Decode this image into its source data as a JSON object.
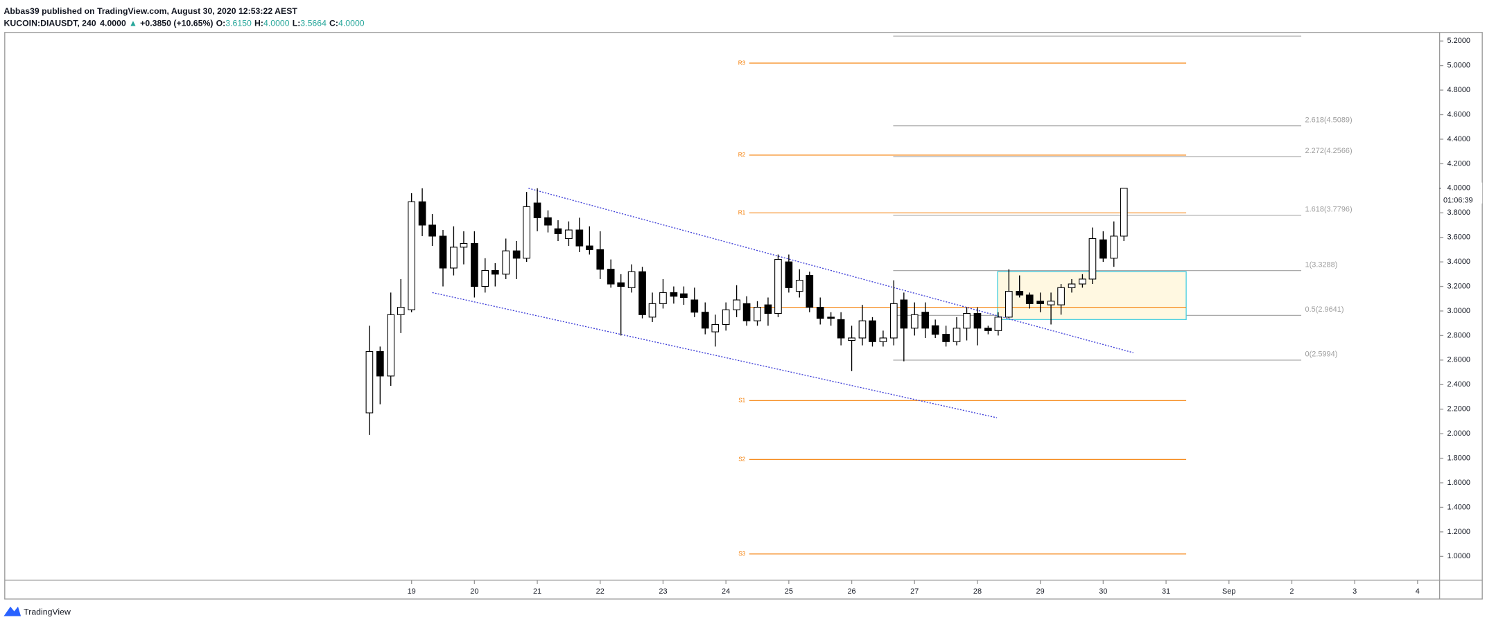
{
  "header": {
    "author_line": "Abbas39 published on TradingView.com, August 30, 2020 12:53:22 AEST",
    "symbol": "KUCOIN:DIAUSDT, 240",
    "last": "4.0000",
    "change": "+0.3850 (+10.65%)",
    "open_label": "O:",
    "open": "3.6150",
    "high_label": "H:",
    "high": "4.0000",
    "low_label": "L:",
    "low": "3.5664",
    "close_label": "C:",
    "close": "4.0000"
  },
  "chart_data": {
    "type": "candlestick",
    "x": [
      18.33,
      18.5,
      18.67,
      18.83,
      19,
      19.17,
      19.33,
      19.5,
      19.67,
      19.83,
      20,
      20.17,
      20.33,
      20.5,
      20.67,
      20.83,
      21,
      21.17,
      21.33,
      21.5,
      21.67,
      21.83,
      22,
      22.17,
      22.33,
      22.5,
      22.67,
      22.83,
      23,
      23.17,
      23.33,
      23.5,
      23.67,
      23.83,
      24,
      24.17,
      24.33,
      24.5,
      24.67,
      24.83,
      25,
      25.17,
      25.33,
      25.5,
      25.67,
      25.83,
      26,
      26.17,
      26.33,
      26.5,
      26.67,
      26.83,
      27,
      27.17,
      27.33,
      27.5,
      27.67,
      27.83,
      28,
      28.17,
      28.33,
      28.5,
      28.67,
      28.83,
      29,
      29.17,
      29.33,
      29.5,
      29.67,
      29.83,
      30,
      30.17,
      30.33
    ],
    "open": [
      2.17,
      2.67,
      2.47,
      2.97,
      3.01,
      3.89,
      3.7,
      3.61,
      3.35,
      3.52,
      3.55,
      3.2,
      3.33,
      3.3,
      3.49,
      3.43,
      3.88,
      3.76,
      3.67,
      3.59,
      3.66,
      3.53,
      3.5,
      3.34,
      3.23,
      3.19,
      3.32,
      2.95,
      3.06,
      3.15,
      3.14,
      3.09,
      2.99,
      2.83,
      2.89,
      3.01,
      3.06,
      2.92,
      3.05,
      2.98,
      3.4,
      3.16,
      3.29,
      3.03,
      2.95,
      2.93,
      2.76,
      2.78,
      2.92,
      2.75,
      2.78,
      3.09,
      2.86,
      2.99,
      2.88,
      2.81,
      2.75,
      2.86,
      2.98,
      2.86,
      2.84,
      2.95,
      3.16,
      3.13,
      3.08,
      3.05,
      3.05,
      3.19,
      3.22,
      3.26,
      3.58,
      3.43,
      3.61
    ],
    "high": [
      2.88,
      2.71,
      3.15,
      3.26,
      3.96,
      4.0,
      3.79,
      3.66,
      3.69,
      3.65,
      3.65,
      3.43,
      3.39,
      3.59,
      3.57,
      3.97,
      4.0,
      3.82,
      3.74,
      3.73,
      3.76,
      3.69,
      3.65,
      3.42,
      3.3,
      3.38,
      3.36,
      3.15,
      3.26,
      3.2,
      3.2,
      3.19,
      3.07,
      2.97,
      3.07,
      3.21,
      3.12,
      3.08,
      3.11,
      3.46,
      3.46,
      3.34,
      3.32,
      3.11,
      2.99,
      2.99,
      2.88,
      3.05,
      2.95,
      2.84,
      3.25,
      3.15,
      3.07,
      3.07,
      2.93,
      2.88,
      2.95,
      3.03,
      3.03,
      2.88,
      2.99,
      3.34,
      3.29,
      3.15,
      3.15,
      3.15,
      3.22,
      3.26,
      3.3,
      3.68,
      3.65,
      3.73,
      4.0
    ],
    "low": [
      1.99,
      2.24,
      2.39,
      2.82,
      2.99,
      3.61,
      3.53,
      3.2,
      3.29,
      3.38,
      3.11,
      3.15,
      3.2,
      3.26,
      3.26,
      3.4,
      3.65,
      3.64,
      3.57,
      3.53,
      3.48,
      3.46,
      3.26,
      3.19,
      2.8,
      3.15,
      2.94,
      2.91,
      3.02,
      3.06,
      3.05,
      2.95,
      2.81,
      2.71,
      2.84,
      2.95,
      2.88,
      2.88,
      2.88,
      2.95,
      3.15,
      3.11,
      2.99,
      2.89,
      2.88,
      2.72,
      2.51,
      2.72,
      2.71,
      2.71,
      2.72,
      2.59,
      2.8,
      2.78,
      2.78,
      2.71,
      2.72,
      2.76,
      2.72,
      2.81,
      2.8,
      2.94,
      3.11,
      3.02,
      2.99,
      2.89,
      2.97,
      3.15,
      3.19,
      3.22,
      3.4,
      3.36,
      3.57
    ],
    "close": [
      2.67,
      2.47,
      2.97,
      3.03,
      3.89,
      3.7,
      3.61,
      3.35,
      3.52,
      3.55,
      3.2,
      3.33,
      3.3,
      3.49,
      3.43,
      3.85,
      3.76,
      3.7,
      3.63,
      3.66,
      3.53,
      3.5,
      3.34,
      3.22,
      3.2,
      3.32,
      2.97,
      3.06,
      3.15,
      3.12,
      3.11,
      2.99,
      2.86,
      2.89,
      3.01,
      3.09,
      2.92,
      3.03,
      2.98,
      3.42,
      3.19,
      3.25,
      3.03,
      2.94,
      2.94,
      2.78,
      2.78,
      2.92,
      2.75,
      2.78,
      3.06,
      2.86,
      2.97,
      2.86,
      2.81,
      2.75,
      2.86,
      2.98,
      2.86,
      2.84,
      2.95,
      3.16,
      3.13,
      3.06,
      3.06,
      3.08,
      3.19,
      3.22,
      3.26,
      3.59,
      3.43,
      3.61,
      4.0
    ],
    "up_color": "#ffffff",
    "down_color": "#000000",
    "xlim": [
      12.53,
      35.35
    ],
    "ylim": [
      0.807,
      5.27
    ],
    "xticks": [
      19,
      20,
      21,
      22,
      23,
      24,
      25,
      26,
      27,
      28,
      29,
      30,
      31,
      {
        "value": 32,
        "label": "Sep"
      },
      {
        "value": 33,
        "label": "2"
      },
      {
        "value": 34,
        "label": "3"
      },
      {
        "value": 35,
        "label": "4"
      }
    ],
    "yticks": [
      {
        "value": 1,
        "label": "1.0000"
      },
      {
        "value": 1.2,
        "label": "1.2000"
      },
      {
        "value": 1.4,
        "label": "1.4000"
      },
      {
        "value": 1.6,
        "label": "1.6000"
      },
      {
        "value": 1.8,
        "label": "1.8000"
      },
      {
        "value": 2,
        "label": "2.0000"
      },
      {
        "value": 2.2,
        "label": "2.2000"
      },
      {
        "value": 2.4,
        "label": "2.4000"
      },
      {
        "value": 2.6,
        "label": "2.6000"
      },
      {
        "value": 2.8,
        "label": "2.8000"
      },
      {
        "value": 3,
        "label": "3.0000"
      },
      {
        "value": 3.2,
        "label": "3.2000"
      },
      {
        "value": 3.4,
        "label": "3.4000"
      },
      {
        "value": 3.6,
        "label": "3.6000"
      },
      {
        "value": 3.8,
        "label": "3.8000"
      },
      {
        "value": 4,
        "label": "4.0000"
      },
      {
        "value": 4.2,
        "label": "4.2000"
      },
      {
        "value": 4.4,
        "label": "4.4000"
      },
      {
        "value": 4.6,
        "label": "4.6000"
      },
      {
        "value": 4.8,
        "label": "4.8000"
      },
      {
        "value": 5,
        "label": "5.0000"
      },
      {
        "value": 5.2,
        "label": "5.2000"
      }
    ],
    "price_label": {
      "value": 4,
      "label": "4.0000"
    },
    "countdown": "01:06:39",
    "pivots": {
      "range": [
        24.37,
        31.32
      ],
      "color": "#f57c00",
      "levels": [
        {
          "label": "R3",
          "value": 5.02
        },
        {
          "label": "R2",
          "value": 4.27
        },
        {
          "label": "R1",
          "value": 3.8
        },
        {
          "value": 3.03
        },
        {
          "label": "S1",
          "value": 2.27
        },
        {
          "label": "S2",
          "value": 1.79
        },
        {
          "label": "S3",
          "value": 1.02
        }
      ]
    },
    "fib": {
      "range": [
        26.66,
        33.15
      ],
      "color": "#9e9e9e",
      "levels": [
        {
          "value": 5.24
        },
        {
          "label": "2.618(4.5089)",
          "value": 4.5089
        },
        {
          "label": "2.272(4.2566)",
          "value": 4.2566
        },
        {
          "label": "1.618(3.7796)",
          "value": 3.7796
        },
        {
          "label": "1(3.3288)",
          "value": 3.3288
        },
        {
          "label": "0.5(2.9641)",
          "value": 2.9641
        },
        {
          "label": "0(2.5994)",
          "value": 2.5994
        }
      ]
    },
    "channel": {
      "color": "#3f3fd8",
      "lines": [
        {
          "x": [
            20.86,
            30.48
          ],
          "y": [
            4.0,
            2.66
          ]
        },
        {
          "x": [
            19.33,
            28.31
          ],
          "y": [
            3.15,
            2.13
          ]
        }
      ]
    },
    "box": {
      "x": [
        28.32,
        31.32
      ],
      "y": [
        2.93,
        3.32
      ],
      "stroke": "#4dd0e1",
      "fill": "#fff8e1"
    }
  },
  "footer": {
    "brand": "TradingView"
  }
}
